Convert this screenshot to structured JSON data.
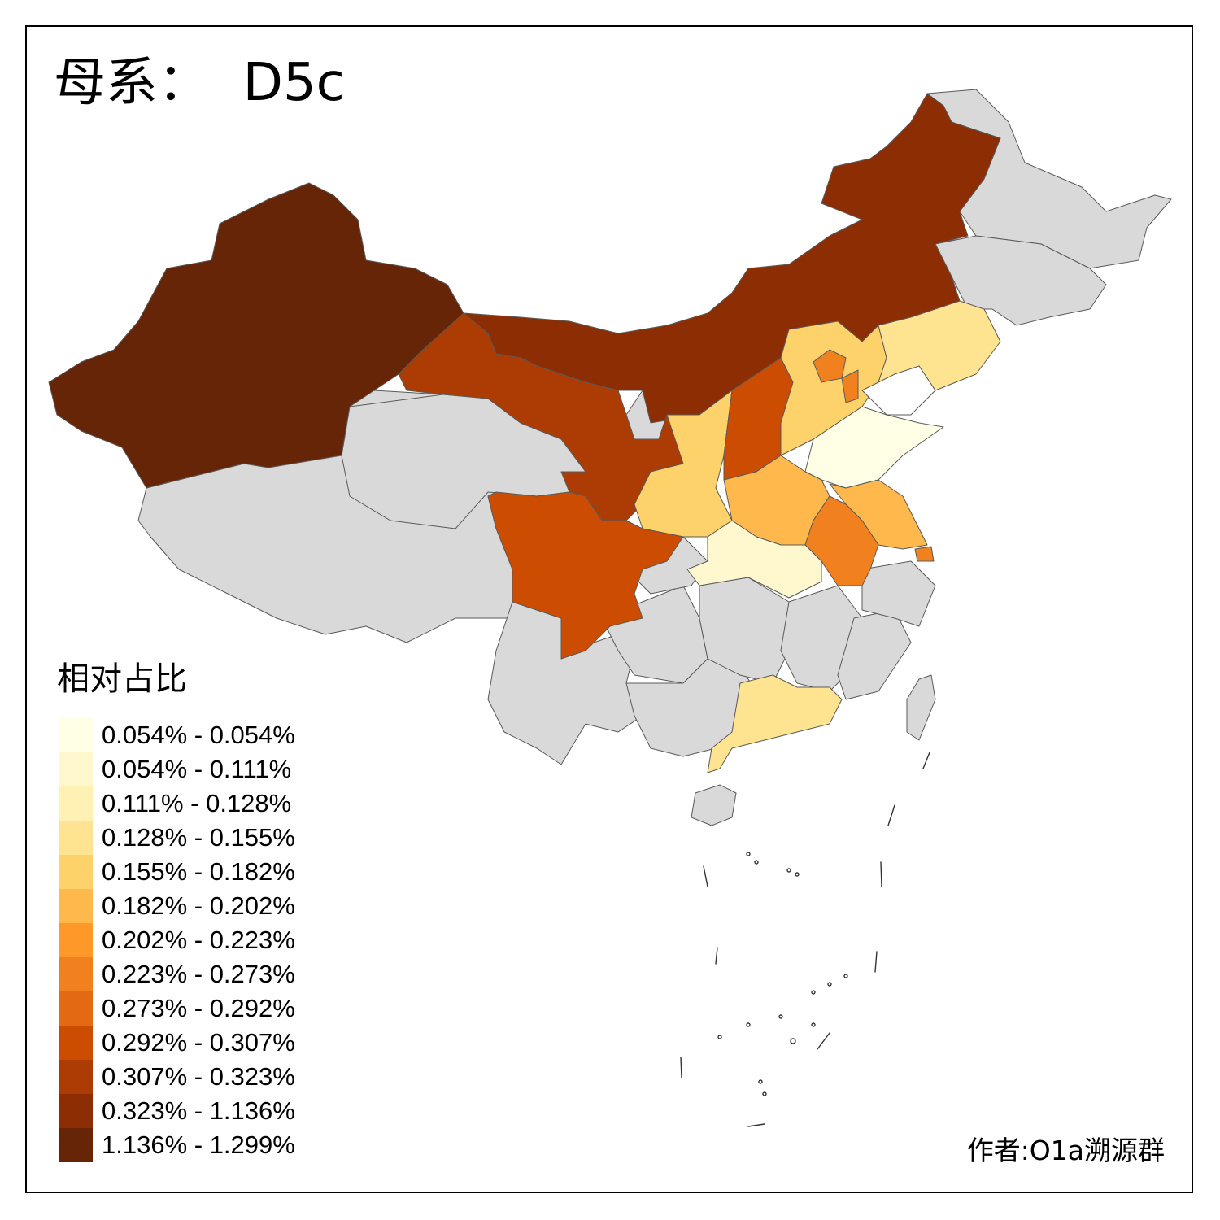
{
  "title": "母系：  D5c",
  "legend": {
    "title": "相对占比",
    "items": [
      {
        "label": "0.054% - 0.054%",
        "color": "#ffffe5"
      },
      {
        "label": "0.054% - 0.111%",
        "color": "#fff8cf"
      },
      {
        "label": "0.111% - 0.128%",
        "color": "#fff0b4"
      },
      {
        "label": "0.128% - 0.155%",
        "color": "#fee391"
      },
      {
        "label": "0.155% - 0.182%",
        "color": "#fed26b"
      },
      {
        "label": "0.182% - 0.202%",
        "color": "#feb84c"
      },
      {
        "label": "0.202% - 0.223%",
        "color": "#fe9929"
      },
      {
        "label": "0.223% - 0.273%",
        "color": "#f1811e"
      },
      {
        "label": "0.273% - 0.292%",
        "color": "#e36a13"
      },
      {
        "label": "0.292% - 0.307%",
        "color": "#cc4c02"
      },
      {
        "label": "0.307% - 0.323%",
        "color": "#ac3c04"
      },
      {
        "label": "0.323% - 1.136%",
        "color": "#8c2d04"
      },
      {
        "label": "1.136% - 1.299%",
        "color": "#662506"
      }
    ]
  },
  "no_data_color": "#d9d9d9",
  "credit": "作者:O1a溯源群"
}
